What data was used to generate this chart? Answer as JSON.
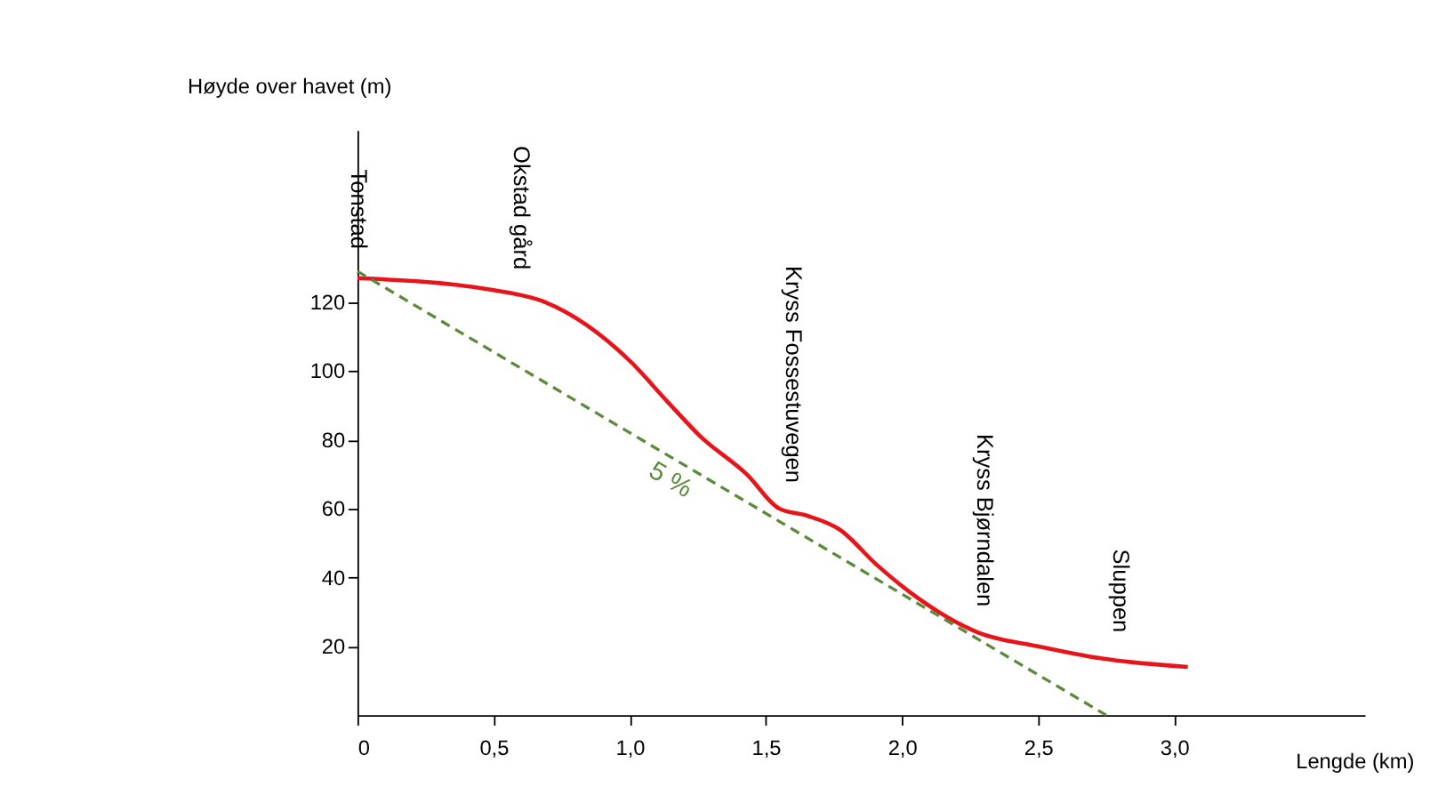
{
  "chart_data": {
    "type": "line",
    "ylabel": "Høyde over havet (m)",
    "xlabel": "Lengde (km)",
    "xlim": [
      0,
      3.7
    ],
    "ylim": [
      0,
      170
    ],
    "xticks": [
      {
        "value": 0,
        "label": "0"
      },
      {
        "value": 0.5,
        "label": "0,5"
      },
      {
        "value": 1,
        "label": "1,0"
      },
      {
        "value": 1.5,
        "label": "1,5"
      },
      {
        "value": 2,
        "label": "2,0"
      },
      {
        "value": 2.5,
        "label": "2,5"
      },
      {
        "value": 3,
        "label": "3,0"
      }
    ],
    "yticks": [
      20,
      40,
      60,
      80,
      100,
      120
    ],
    "marker": "none",
    "series": [
      {
        "color": "#e8141b",
        "line_style": "solid",
        "x": [
          0,
          0.5,
          0.69,
          1.0,
          1.14,
          1.26,
          1.43,
          1.55,
          1.65,
          1.77,
          1.91,
          2.05,
          2.28,
          2.5,
          2.73,
          3.05
        ],
        "values": [
          127,
          123.5,
          120,
          103,
          91,
          81,
          70,
          60,
          58,
          54,
          43.5,
          34.5,
          24,
          20,
          16.5,
          14
        ]
      },
      {
        "color": "#5a8a3a",
        "line_style": "dashed",
        "x": [
          0,
          2.75
        ],
        "values": [
          129,
          0
        ]
      }
    ],
    "annotations": [
      {
        "text": "Tonstad",
        "x": 0,
        "y": 127
      },
      {
        "text": "Okstad gård",
        "x": 0.6,
        "y": 121
      },
      {
        "text": "Kryss Fossestuvegen",
        "x": 1.6,
        "y": 59
      },
      {
        "text": "Kryss Bjørndalen",
        "x": 2.3,
        "y": 23
      },
      {
        "text": "Sluppen",
        "x": 2.8,
        "y": 15.5
      },
      {
        "text": "5 %",
        "x": 1.15,
        "y": 75
      }
    ]
  }
}
